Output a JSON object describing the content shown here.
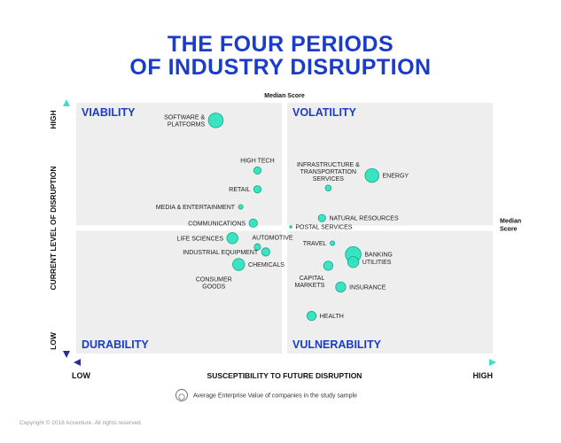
{
  "title_lines": [
    "THE FOUR PERIODS",
    "OF INDUSTRY DISRUPTION"
  ],
  "footer": "Copyright © 2018 Accenture. All rights reserved.",
  "colors": {
    "title": "#1a3cc9",
    "quadrant_bg": "#eeeeee",
    "bubble_fill": "#2fe2be",
    "bubble_stroke": "#17a88c",
    "axis_gradient_start": "#2a2f8f",
    "axis_gradient_end": "#3de3c1"
  },
  "chart_data": {
    "type": "scatter",
    "subtype": "bubble-quadrant",
    "xlabel": "SUSCEPTIBILITY TO FUTURE DISRUPTION",
    "ylabel": "CURRENT LEVEL OF DISRUPTION",
    "x_low_label": "LOW",
    "x_high_label": "HIGH",
    "y_low_label": "LOW",
    "y_high_label": "HIGH",
    "median_x_label": "Median Score",
    "median_y_label_lines": [
      "Median",
      "Score"
    ],
    "xlim": [
      0,
      1
    ],
    "ylim": [
      0,
      1
    ],
    "median": {
      "x": 0.5,
      "y": 0.5
    },
    "legend": {
      "text": "Average Enterprise Value of companies in the study sample",
      "placement": "bottom-center"
    },
    "quadrants": [
      {
        "label": "VIABILITY",
        "position": "top-left"
      },
      {
        "label": "VOLATILITY",
        "position": "top-right"
      },
      {
        "label": "DURABILITY",
        "position": "bottom-left"
      },
      {
        "label": "VULNERABILITY",
        "position": "bottom-right"
      }
    ],
    "points": [
      {
        "label_lines": [
          "SOFTWARE &",
          "PLATFORMS"
        ],
        "x": 0.335,
        "y": 0.93,
        "size": 3.2,
        "label_side": "left"
      },
      {
        "label_lines": [
          "HIGH TECH"
        ],
        "x": 0.435,
        "y": 0.73,
        "size": 1.6,
        "label_side": "above"
      },
      {
        "label_lines": [
          "RETAIL"
        ],
        "x": 0.435,
        "y": 0.655,
        "size": 1.6,
        "label_side": "left"
      },
      {
        "label_lines": [
          "MEDIA & ENTERTAINMENT"
        ],
        "x": 0.395,
        "y": 0.585,
        "size": 1.0,
        "label_side": "left"
      },
      {
        "label_lines": [
          "COMMUNICATIONS"
        ],
        "x": 0.425,
        "y": 0.52,
        "size": 1.8,
        "label_side": "left"
      },
      {
        "label_lines": [
          "LIFE SCIENCES"
        ],
        "x": 0.375,
        "y": 0.46,
        "size": 2.4,
        "label_side": "left"
      },
      {
        "label_lines": [
          "AUTOMOTIVE"
        ],
        "x": 0.435,
        "y": 0.425,
        "size": 1.4,
        "label_side": "above-right"
      },
      {
        "label_lines": [
          "INDUSTRIAL EQUIPMENT"
        ],
        "x": 0.455,
        "y": 0.405,
        "size": 1.8,
        "label_side": "left"
      },
      {
        "label_lines": [
          "CHEMICALS"
        ],
        "x": 0.39,
        "y": 0.355,
        "size": 2.6,
        "label_side": "right"
      },
      {
        "label_lines": [
          "CONSUMER",
          "GOODS"
        ],
        "x": 0.39,
        "y": 0.355,
        "size": 0,
        "label_side": "below"
      },
      {
        "label_lines": [
          "INFRASTRUCTURE &",
          "TRANSPORTATION",
          "SERVICES"
        ],
        "x": 0.605,
        "y": 0.66,
        "size": 1.3,
        "label_side": "above"
      },
      {
        "label_lines": [
          "ENERGY"
        ],
        "x": 0.71,
        "y": 0.71,
        "size": 3.0,
        "label_side": "right"
      },
      {
        "label_lines": [
          "NATURAL RESOURCES"
        ],
        "x": 0.59,
        "y": 0.54,
        "size": 1.6,
        "label_side": "right"
      },
      {
        "label_lines": [
          "POSTAL SERVICES"
        ],
        "x": 0.515,
        "y": 0.505,
        "size": 0.5,
        "label_side": "right"
      },
      {
        "label_lines": [
          "TRAVEL"
        ],
        "x": 0.615,
        "y": 0.44,
        "size": 1.0,
        "label_side": "left"
      },
      {
        "label_lines": [
          "BANKING"
        ],
        "x": 0.665,
        "y": 0.395,
        "size": 3.4,
        "label_side": "right"
      },
      {
        "label_lines": [
          "UTILITIES"
        ],
        "x": 0.665,
        "y": 0.365,
        "size": 2.4,
        "label_side": "right"
      },
      {
        "label_lines": [],
        "x": 0.605,
        "y": 0.35,
        "size": 2.0,
        "label_side": "none"
      },
      {
        "label_lines": [
          "CAPITAL",
          "MARKETS"
        ],
        "x": 0.605,
        "y": 0.35,
        "size": 0,
        "label_side": "below-left"
      },
      {
        "label_lines": [
          "INSURANCE"
        ],
        "x": 0.635,
        "y": 0.265,
        "size": 2.2,
        "label_side": "right"
      },
      {
        "label_lines": [
          "HEALTH"
        ],
        "x": 0.565,
        "y": 0.15,
        "size": 2.0,
        "label_side": "right"
      }
    ]
  }
}
